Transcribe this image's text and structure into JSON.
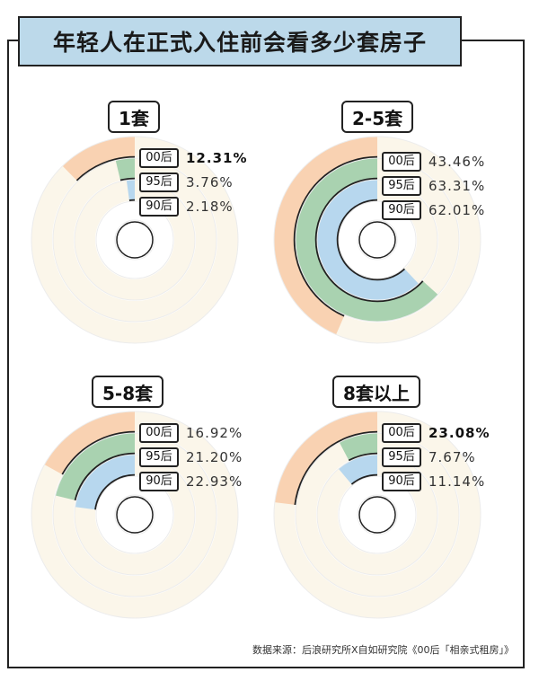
{
  "title": "年轻人在正式入住前会看多少套房子",
  "source": "数据来源：后浪研究所X自如研究院《00后「相亲式租房」》",
  "colors": {
    "00后": "#f9d2b2",
    "95后": "#a9d2b0",
    "90后": "#b7d7ee",
    "track": "#fbf6ea",
    "stroke": "#222222"
  },
  "chart_data": [
    {
      "type": "radial-bar",
      "title": "1套",
      "series": [
        {
          "name": "00后",
          "value": 12.31,
          "label": "12.31%",
          "bold": true
        },
        {
          "name": "95后",
          "value": 3.76,
          "label": "3.76%",
          "bold": false
        },
        {
          "name": "90后",
          "value": 2.18,
          "label": "2.18%",
          "bold": false
        }
      ]
    },
    {
      "type": "radial-bar",
      "title": "2-5套",
      "series": [
        {
          "name": "00后",
          "value": 43.46,
          "label": "43.46%",
          "bold": false
        },
        {
          "name": "95后",
          "value": 63.31,
          "label": "63.31%",
          "bold": false
        },
        {
          "name": "90后",
          "value": 62.01,
          "label": "62.01%",
          "bold": false
        }
      ]
    },
    {
      "type": "radial-bar",
      "title": "5-8套",
      "series": [
        {
          "name": "00后",
          "value": 16.92,
          "label": "16.92%",
          "bold": false
        },
        {
          "name": "95后",
          "value": 21.2,
          "label": "21.20%",
          "bold": false
        },
        {
          "name": "90后",
          "value": 22.93,
          "label": "22.93%",
          "bold": false
        }
      ]
    },
    {
      "type": "radial-bar",
      "title": "8套以上",
      "series": [
        {
          "name": "00后",
          "value": 23.08,
          "label": "23.08%",
          "bold": true
        },
        {
          "name": "95后",
          "value": 7.67,
          "label": "7.67%",
          "bold": false
        },
        {
          "name": "90后",
          "value": 11.14,
          "label": "11.14%",
          "bold": false
        }
      ]
    }
  ]
}
